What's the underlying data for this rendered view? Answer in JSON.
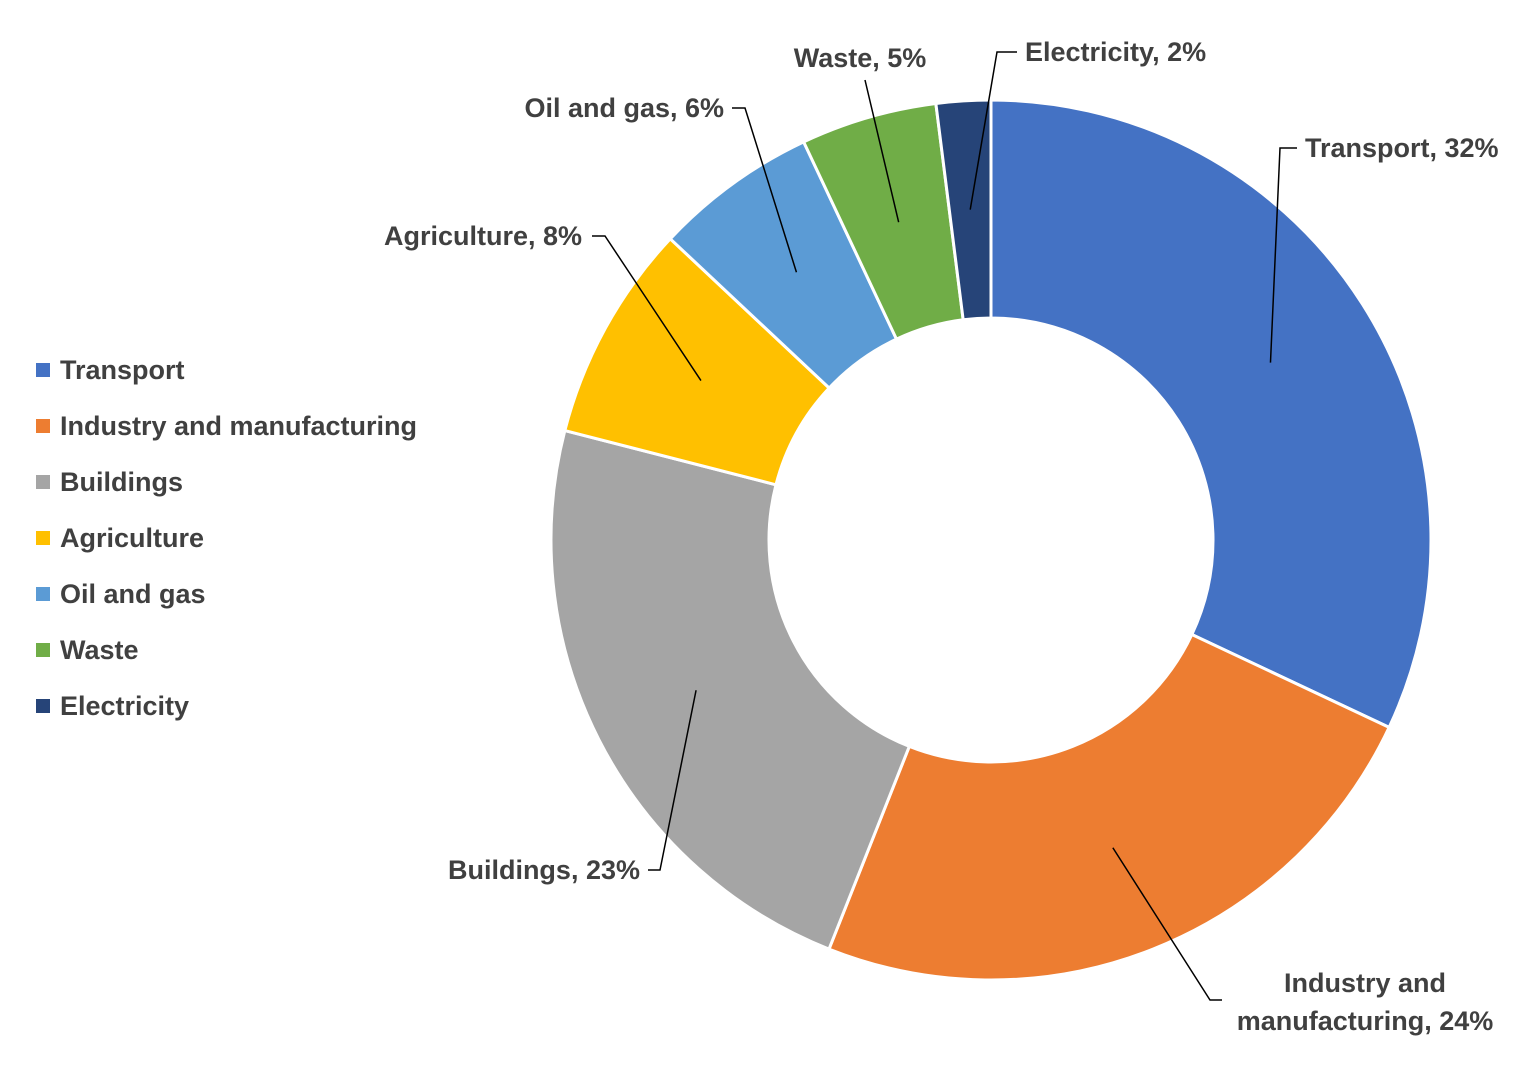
{
  "chart_data": {
    "type": "donut",
    "categories": [
      "Transport",
      "Industry and manufacturing",
      "Buildings",
      "Agriculture",
      "Oil and gas",
      "Waste",
      "Electricity"
    ],
    "values": [
      32,
      24,
      23,
      8,
      6,
      5,
      2
    ],
    "value_labels": [
      "Transport, 32%",
      "Industry and manufacturing, 24%",
      "Buildings, 23%",
      "Agriculture, 8%",
      "Oil and gas, 6%",
      "Waste, 5%",
      "Electricity, 2%"
    ],
    "colors": [
      "#4472c4",
      "#ed7d31",
      "#a5a5a5",
      "#ffc000",
      "#5b9bd5",
      "#70ad47",
      "#264478"
    ],
    "legend": "left"
  }
}
